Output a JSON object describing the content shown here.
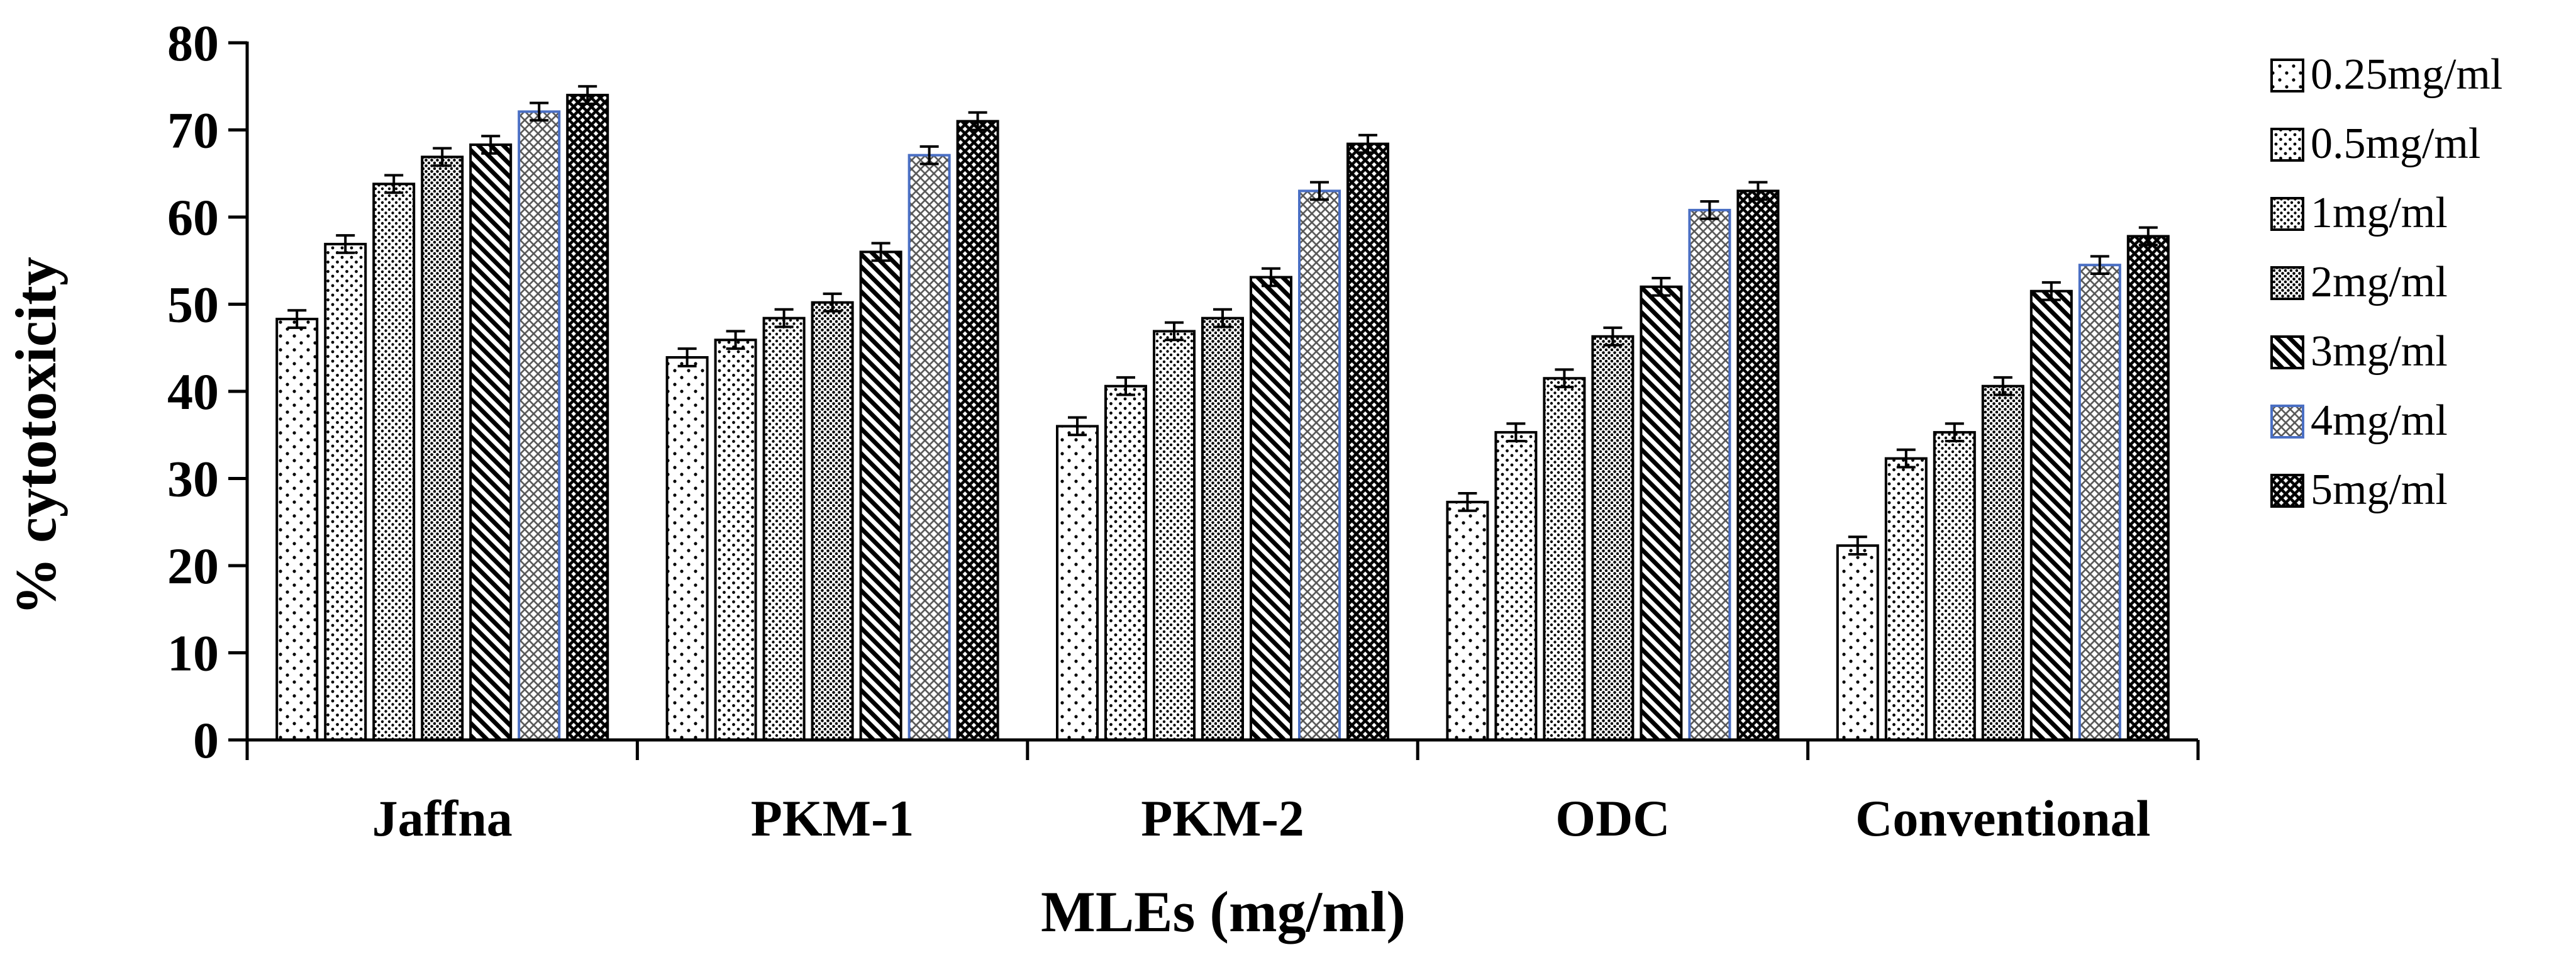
{
  "chart_data": {
    "type": "bar",
    "title": "",
    "xlabel": "MLEs (mg/ml)",
    "ylabel": "% cytotoxicity",
    "ylim": [
      0,
      80
    ],
    "yticks": [
      0,
      10,
      20,
      30,
      40,
      50,
      60,
      70,
      80
    ],
    "grid": false,
    "legend_position": "right",
    "categories": [
      "Jaffna",
      "PKM-1",
      "PKM-2",
      "ODC",
      "Conventional"
    ],
    "series": [
      {
        "name": "0.25mg/ml",
        "pattern": "sparse-dots",
        "values": [
          48.3,
          43.9,
          36.0,
          27.3,
          22.3
        ],
        "errors": [
          1.0,
          1.0,
          1.0,
          1.0,
          1.0
        ]
      },
      {
        "name": "0.5mg/ml",
        "pattern": "dots",
        "values": [
          56.9,
          45.9,
          40.6,
          35.3,
          32.3
        ],
        "errors": [
          1.0,
          1.0,
          1.0,
          1.0,
          1.0
        ]
      },
      {
        "name": "1mg/ml",
        "pattern": "fine-dots",
        "values": [
          63.8,
          48.4,
          46.9,
          41.5,
          35.3
        ],
        "errors": [
          1.0,
          1.0,
          1.0,
          1.0,
          1.0
        ]
      },
      {
        "name": "2mg/ml",
        "pattern": "dense-dots",
        "values": [
          66.9,
          50.2,
          48.4,
          46.3,
          40.6
        ],
        "errors": [
          1.0,
          1.0,
          1.0,
          1.0,
          1.0
        ]
      },
      {
        "name": "3mg/ml",
        "pattern": "diagonal",
        "values": [
          68.3,
          56.0,
          53.1,
          52.0,
          51.5
        ],
        "errors": [
          1.0,
          1.0,
          1.0,
          1.0,
          1.0
        ]
      },
      {
        "name": "4mg/ml",
        "pattern": "crosshatch-light",
        "border": "#4a6fc4",
        "values": [
          72.1,
          67.1,
          63.0,
          60.8,
          54.5
        ],
        "errors": [
          1.0,
          1.0,
          1.0,
          1.0,
          1.0
        ]
      },
      {
        "name": "5mg/ml",
        "pattern": "crosshatch-dark",
        "values": [
          74.0,
          71.0,
          68.4,
          63.0,
          57.8
        ],
        "errors": [
          1.0,
          1.0,
          1.0,
          1.0,
          1.0
        ]
      }
    ],
    "colors": {
      "axis": "#000000",
      "bar_border": "#000000",
      "highlight_border": "#4a6fc4"
    }
  }
}
